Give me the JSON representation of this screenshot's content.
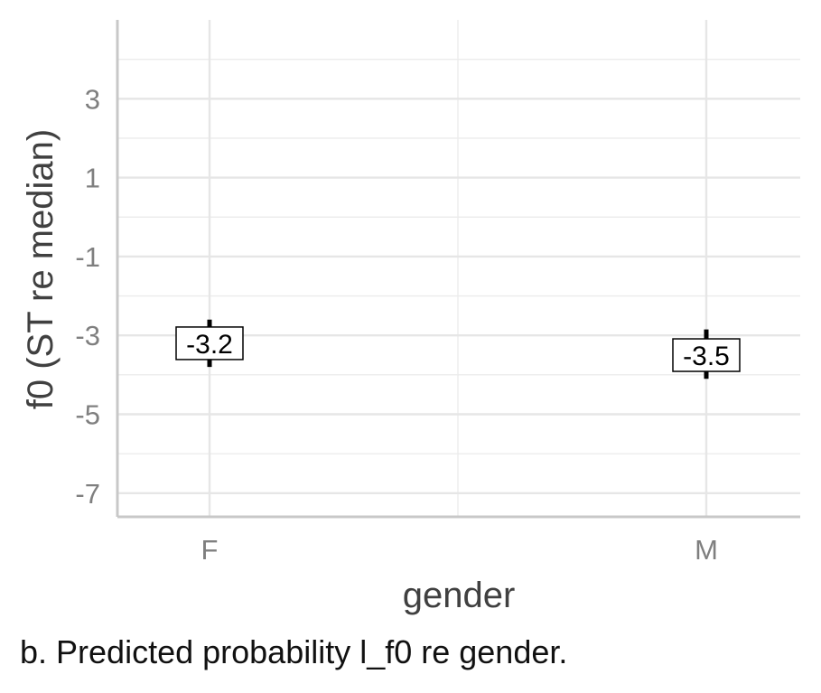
{
  "chart_data": {
    "type": "pointrange",
    "xlabel": "gender",
    "ylabel": "f0 (ST re median)",
    "categories": [
      "F",
      "M"
    ],
    "values": [
      -3.2,
      -3.5
    ],
    "labels": [
      "-3.2",
      "-3.5"
    ],
    "error_low": [
      -3.8,
      -4.1
    ],
    "error_high": [
      -2.6,
      -2.85
    ],
    "ylim": [
      -7.6,
      5.0
    ],
    "yticks": [
      3,
      1,
      -1,
      -3,
      -5,
      -7
    ],
    "ytick_labels": [
      "3",
      "1",
      "-1",
      "-3",
      "-5",
      "-7"
    ],
    "grid": true,
    "legend": "none"
  },
  "caption": "b. Predicted probability l_f0 re gender."
}
